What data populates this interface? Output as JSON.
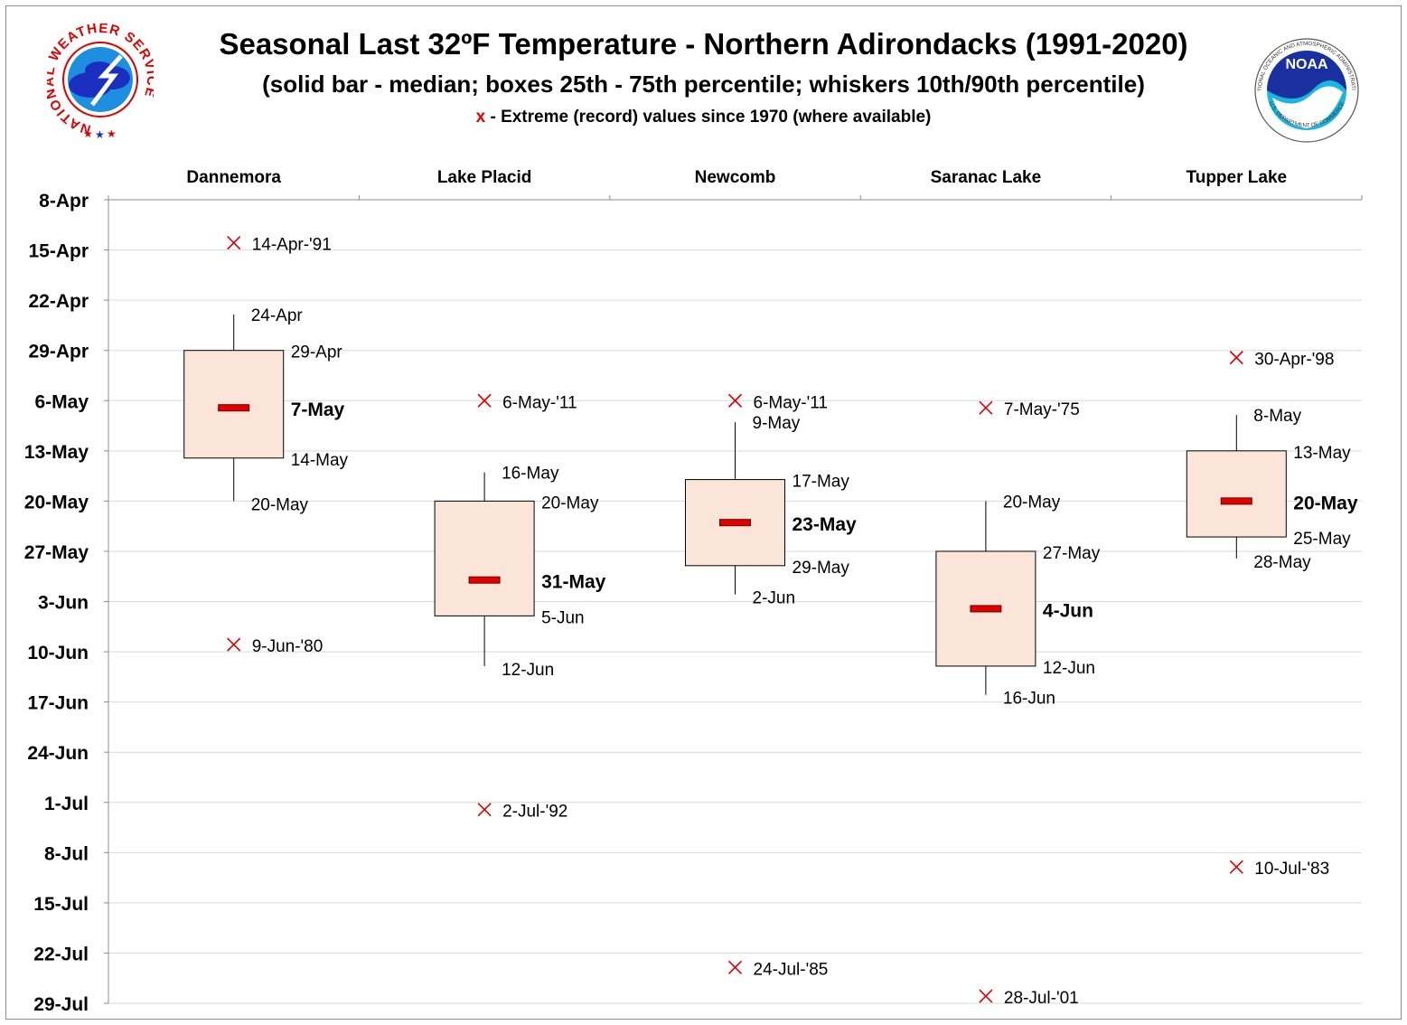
{
  "titles": {
    "main": "Seasonal Last 32ºF Temperature - Northern Adirondacks (1991-2020)",
    "subtitle": "(solid bar - median; boxes 25th - 75th percentile; whiskers 10th/90th percentile)",
    "note_marker": "x",
    "note_text": " - Extreme (record) values since 1970 (where available)"
  },
  "logos": {
    "nws_text": "NATIONAL WEATHER SERVICE",
    "noaa_text": "NOAA",
    "noaa_ring_top": "NATIONAL OCEANIC AND ATMOSPHERIC ADMINISTRATION",
    "noaa_ring_bottom": "U.S. DEPARTMENT OF COMMERCE"
  },
  "colors": {
    "box_fill": "#fae5d8",
    "median": "#e00000",
    "extreme_marker": "#e00000",
    "gridline": "#d9d9d9"
  },
  "chart_data": {
    "type": "box",
    "categories": [
      "Dannemora",
      "Lake Placid",
      "Newcomb",
      "Saranac Lake",
      "Tupper Lake"
    ],
    "y_axis": {
      "reversed": true,
      "ticks": [
        "8-Apr",
        "15-Apr",
        "22-Apr",
        "29-Apr",
        "6-May",
        "13-May",
        "20-May",
        "27-May",
        "3-Jun",
        "10-Jun",
        "17-Jun",
        "24-Jun",
        "1-Jul",
        "8-Jul",
        "15-Jul",
        "22-Jul",
        "29-Jul"
      ],
      "min": "8-Apr",
      "max": "29-Jul"
    },
    "grid": true,
    "series": [
      {
        "p10": "24-Apr",
        "p25": "29-Apr",
        "median": "7-May",
        "p75": "14-May",
        "p90": "20-May",
        "extremes": [
          {
            "date": "14-Apr",
            "label": "14-Apr-'91"
          },
          {
            "date": "9-Jun",
            "label": "9-Jun-'80"
          }
        ]
      },
      {
        "p10": "16-May",
        "p25": "20-May",
        "median": "31-May",
        "p75": "5-Jun",
        "p90": "12-Jun",
        "extremes": [
          {
            "date": "6-May",
            "label": "6-May-'11"
          },
          {
            "date": "2-Jul",
            "label": "2-Jul-'92"
          }
        ]
      },
      {
        "p10": "9-May",
        "p25": "17-May",
        "median": "23-May",
        "p75": "29-May",
        "p90": "2-Jun",
        "extremes": [
          {
            "date": "6-May",
            "label": "6-May-'11"
          },
          {
            "date": "24-Jul",
            "label": "24-Jul-'85"
          }
        ]
      },
      {
        "p10": "20-May",
        "p25": "27-May",
        "median": "4-Jun",
        "p75": "12-Jun",
        "p90": "16-Jun",
        "extremes": [
          {
            "date": "7-May",
            "label": "7-May-'75"
          },
          {
            "date": "28-Jul",
            "label": "28-Jul-'01"
          }
        ]
      },
      {
        "p10": "8-May",
        "p25": "13-May",
        "median": "20-May",
        "p75": "25-May",
        "p90": "28-May",
        "extremes": [
          {
            "date": "30-Apr",
            "label": "30-Apr-'98"
          },
          {
            "date": "10-Jul",
            "label": "10-Jul-'83"
          }
        ]
      }
    ]
  }
}
